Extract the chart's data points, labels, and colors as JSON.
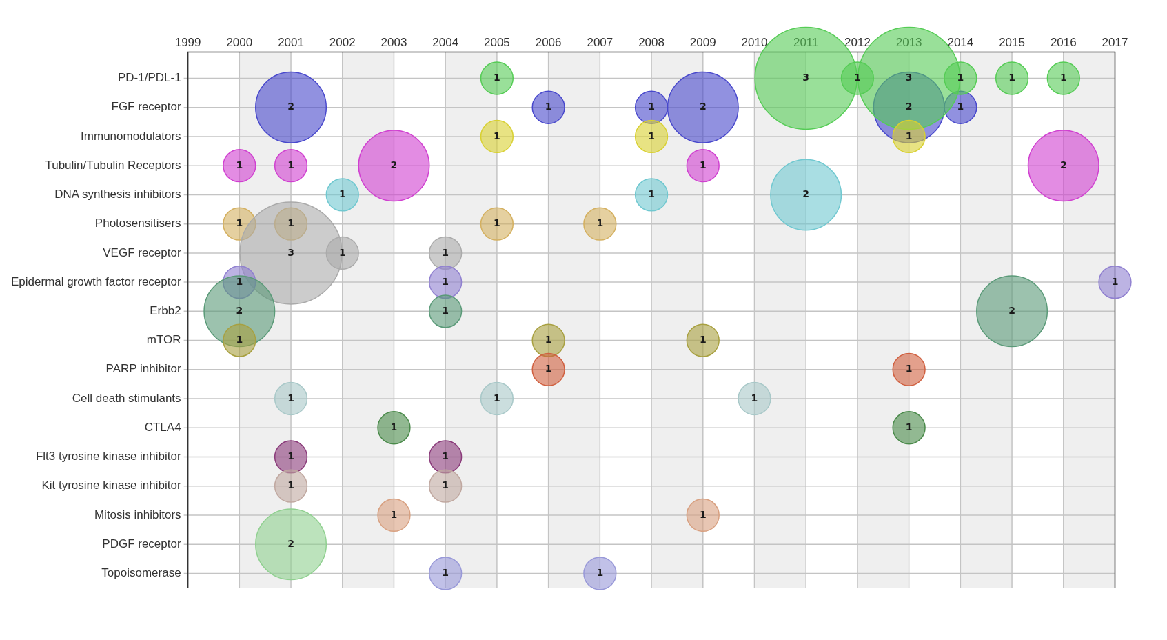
{
  "chart_data": {
    "type": "bubble",
    "orientation": "horizontal",
    "categories": [
      "PD-1/PDL-1",
      "FGF receptor",
      "Immunomodulators",
      "Tubulin/Tubulin Receptors",
      "DNA synthesis inhibitors",
      "Photosensitisers",
      "VEGF receptor",
      "Epidermal growth factor receptor",
      "Erbb2",
      "mTOR",
      "PARP inhibitor",
      "Cell death stimulants",
      "CTLA4",
      "Flt3 tyrosine kinase inhibitor",
      "Kit tyrosine kinase inhibitor",
      "Mitosis inhibitors",
      "PDGF receptor",
      "Topoisomerase"
    ],
    "xlim": [
      1999,
      2017
    ],
    "xticks": [
      1999,
      2000,
      2001,
      2002,
      2003,
      2004,
      2005,
      2006,
      2007,
      2008,
      2009,
      2010,
      2011,
      2012,
      2013,
      2014,
      2015,
      2016,
      2017
    ],
    "grid": true,
    "bands": [
      {
        "axis": "x",
        "from": 2000,
        "to": 2001,
        "color": "#efefef"
      },
      {
        "axis": "x",
        "from": 2002,
        "to": 2003,
        "color": "#efefef"
      },
      {
        "axis": "x",
        "from": 2004,
        "to": 2005,
        "color": "#efefef"
      },
      {
        "axis": "x",
        "from": 2006,
        "to": 2007,
        "color": "#efefef"
      },
      {
        "axis": "x",
        "from": 2008,
        "to": 2009,
        "color": "#efefef"
      },
      {
        "axis": "x",
        "from": 2010,
        "to": 2011,
        "color": "#efefef"
      },
      {
        "axis": "x",
        "from": 2012,
        "to": 2013,
        "color": "#efefef"
      },
      {
        "axis": "x",
        "from": 2014,
        "to": 2015,
        "color": "#efefef"
      },
      {
        "axis": "x",
        "from": 2016,
        "to": 2017,
        "color": "#efefef"
      }
    ],
    "annotations": [
      {
        "text": "1",
        "x": 2005,
        "y": "PD-1/PDL-1"
      },
      {
        "text": "3",
        "x": 2011,
        "y": "PD-1/PDL-1"
      },
      {
        "text": "1",
        "x": 2012,
        "y": "PD-1/PDL-1"
      },
      {
        "text": "3",
        "x": 2013,
        "y": "PD-1/PDL-1"
      },
      {
        "text": "1",
        "x": 2014,
        "y": "PD-1/PDL-1"
      },
      {
        "text": "1",
        "x": 2015,
        "y": "PD-1/PDL-1"
      },
      {
        "text": "1",
        "x": 2016,
        "y": "PD-1/PDL-1"
      },
      {
        "text": "2",
        "x": 2001,
        "y": "FGF receptor"
      },
      {
        "text": "1",
        "x": 2006,
        "y": "FGF receptor"
      },
      {
        "text": "1",
        "x": 2008,
        "y": "FGF receptor"
      },
      {
        "text": "2",
        "x": 2009,
        "y": "FGF receptor"
      },
      {
        "text": "2",
        "x": 2013,
        "y": "FGF receptor"
      },
      {
        "text": "1",
        "x": 2014,
        "y": "FGF receptor"
      },
      {
        "text": "1",
        "x": 2005,
        "y": "Immunomodulators"
      },
      {
        "text": "1",
        "x": 2008,
        "y": "Immunomodulators"
      },
      {
        "text": "1",
        "x": 2013,
        "y": "Immunomodulators"
      },
      {
        "text": "1",
        "x": 2000,
        "y": "Tubulin/Tubulin Receptors"
      },
      {
        "text": "1",
        "x": 2001,
        "y": "Tubulin/Tubulin Receptors"
      },
      {
        "text": "2",
        "x": 2003,
        "y": "Tubulin/Tubulin Receptors"
      },
      {
        "text": "1",
        "x": 2009,
        "y": "Tubulin/Tubulin Receptors"
      },
      {
        "text": "2",
        "x": 2016,
        "y": "Tubulin/Tubulin Receptors"
      },
      {
        "text": "1",
        "x": 2002,
        "y": "DNA synthesis inhibitors"
      },
      {
        "text": "1",
        "x": 2008,
        "y": "DNA synthesis inhibitors"
      },
      {
        "text": "2",
        "x": 2011,
        "y": "DNA synthesis inhibitors"
      },
      {
        "text": "1",
        "x": 2000,
        "y": "Photosensitisers"
      },
      {
        "text": "1",
        "x": 2001,
        "y": "Photosensitisers"
      },
      {
        "text": "1",
        "x": 2005,
        "y": "Photosensitisers"
      },
      {
        "text": "1",
        "x": 2007,
        "y": "Photosensitisers"
      },
      {
        "text": "3",
        "x": 2001,
        "y": "VEGF receptor"
      },
      {
        "text": "1",
        "x": 2002,
        "y": "VEGF receptor"
      },
      {
        "text": "1",
        "x": 2004,
        "y": "VEGF receptor"
      },
      {
        "text": "1",
        "x": 2000,
        "y": "Epidermal growth factor receptor"
      },
      {
        "text": "1",
        "x": 2004,
        "y": "Epidermal growth factor receptor"
      },
      {
        "text": "1",
        "x": 2017,
        "y": "Epidermal growth factor receptor"
      },
      {
        "text": "2",
        "x": 2000,
        "y": "Erbb2"
      },
      {
        "text": "1",
        "x": 2004,
        "y": "Erbb2"
      },
      {
        "text": "2",
        "x": 2015,
        "y": "Erbb2"
      },
      {
        "text": "1",
        "x": 2000,
        "y": "mTOR"
      },
      {
        "text": "1",
        "x": 2006,
        "y": "mTOR"
      },
      {
        "text": "1",
        "x": 2009,
        "y": "mTOR"
      },
      {
        "text": "1",
        "x": 2006,
        "y": "PARP inhibitor"
      },
      {
        "text": "1",
        "x": 2013,
        "y": "PARP inhibitor"
      },
      {
        "text": "1",
        "x": 2001,
        "y": "Cell death stimulants"
      },
      {
        "text": "1",
        "x": 2005,
        "y": "Cell death stimulants"
      },
      {
        "text": "1",
        "x": 2010,
        "y": "Cell death stimulants"
      },
      {
        "text": "1",
        "x": 2003,
        "y": "CTLA4"
      },
      {
        "text": "1",
        "x": 2013,
        "y": "CTLA4"
      },
      {
        "text": "1",
        "x": 2001,
        "y": "Flt3 tyrosine kinase inhibitor"
      },
      {
        "text": "1",
        "x": 2004,
        "y": "Flt3 tyrosine kinase inhibitor"
      },
      {
        "text": "1",
        "x": 2001,
        "y": "Kit tyrosine kinase inhibitor"
      },
      {
        "text": "1",
        "x": 2004,
        "y": "Kit tyrosine kinase inhibitor"
      },
      {
        "text": "1",
        "x": 2003,
        "y": "Mitosis inhibitors"
      },
      {
        "text": "1",
        "x": 2009,
        "y": "Mitosis inhibitors"
      },
      {
        "text": "2",
        "x": 2001,
        "y": "PDGF receptor"
      },
      {
        "text": "1",
        "x": 2004,
        "y": "Topoisomerase"
      },
      {
        "text": "1",
        "x": 2007,
        "y": "Topoisomerase"
      }
    ],
    "series": [
      {
        "colors": [
          "#55cc55",
          "#4848cc",
          "#d8d030",
          "#d040d0",
          "#70c8d0",
          "#d4b060",
          "#aaaaaa",
          "#9080d0",
          "#5a9a78",
          "#a8a040",
          "#d06040",
          "#a8c8c8",
          "#4a8a4a",
          "#8a3a7a",
          "#c0a8a0",
          "#d8a080",
          "#90d090",
          "#9898d8"
        ],
        "values": [
          2005,
          2001,
          2005,
          2000,
          2002,
          2000,
          2001,
          2000,
          2000,
          2000,
          2006,
          2001,
          2003,
          2001,
          2001,
          2003,
          2001,
          2004
        ],
        "sizes": [
          0.1,
          0.48,
          0.1,
          0.1,
          0.1,
          0.1,
          1,
          0.1,
          0.48,
          0.1,
          0.1,
          0.1,
          0.1,
          0.1,
          0.1,
          0.1,
          0.48,
          0.1
        ]
      },
      {
        "colors": [
          "#55cc55",
          "#4848cc",
          "#d8d030",
          "#d040d0",
          "#70c8d0",
          "#d4b060",
          "#aaaaaa",
          "#9080d0",
          "#5a9a78",
          "#a8a040",
          "#d06040",
          "#a8c8c8",
          "#4a8a4a",
          "#8a3a7a",
          "#c0a8a0",
          "#d8a080",
          null,
          "#9898d8"
        ],
        "values": [
          2011,
          2006,
          2008,
          2001,
          2008,
          2001,
          2002,
          2004,
          2004,
          2006,
          2013,
          2005,
          2013,
          2004,
          2004,
          2009,
          null,
          2007
        ],
        "sizes": [
          1,
          0.1,
          0.1,
          0.1,
          0.1,
          0.1,
          0.1,
          0.1,
          0.1,
          0.1,
          0.1,
          0.1,
          0.1,
          0.1,
          0.1,
          0.1,
          null,
          0.1
        ]
      },
      {
        "colors": [
          "#55cc55",
          "#4848cc",
          "#d8d030",
          "#d040d0",
          "#70c8d0",
          "#d4b060",
          "#aaaaaa",
          "#9080d0",
          "#5a9a78",
          "#a8a040",
          null,
          "#a8c8c8",
          null,
          null,
          null,
          null,
          null,
          null
        ],
        "values": [
          2012,
          2008,
          2013,
          2003,
          2011,
          2005,
          2004,
          2017,
          2015,
          2009,
          null,
          2010,
          null,
          null,
          null,
          null,
          null,
          null
        ],
        "sizes": [
          0.1,
          0.1,
          0.1,
          0.48,
          0.48,
          0.1,
          0.1,
          0.1,
          0.48,
          0.1,
          null,
          0.1,
          null,
          null,
          null,
          null,
          null,
          null
        ]
      },
      {
        "colors": [
          "#55cc55",
          "#4848cc",
          null,
          "#d040d0",
          null,
          "#d4b060",
          null,
          null,
          null,
          null,
          null,
          null,
          null,
          null,
          null,
          null,
          null,
          null
        ],
        "values": [
          2013,
          2009,
          null,
          2009,
          null,
          2007,
          null,
          null,
          null,
          null,
          null,
          null,
          null,
          null,
          null,
          null,
          null,
          null
        ],
        "sizes": [
          1,
          0.48,
          null,
          0.1,
          null,
          0.1,
          null,
          null,
          null,
          null,
          null,
          null,
          null,
          null,
          null,
          null,
          null,
          null
        ]
      },
      {
        "colors": [
          "#55cc55",
          "#4848cc",
          null,
          "#d040d0",
          null,
          null,
          null,
          null,
          null,
          null,
          null,
          null,
          null,
          null,
          null,
          null,
          null,
          null
        ],
        "values": [
          2014,
          2013,
          null,
          2016,
          null,
          null,
          null,
          null,
          null,
          null,
          null,
          null,
          null,
          null,
          null,
          null,
          null,
          null
        ],
        "sizes": [
          0.1,
          0.48,
          null,
          0.48,
          null,
          null,
          null,
          null,
          null,
          null,
          null,
          null,
          null,
          null,
          null,
          null,
          null,
          null
        ]
      },
      {
        "colors": [
          "#55cc55",
          "#4848cc",
          null,
          null,
          null,
          null,
          null,
          null,
          null,
          null,
          null,
          null,
          null,
          null,
          null,
          null,
          null,
          null
        ],
        "values": [
          2015,
          2014,
          null,
          null,
          null,
          null,
          null,
          null,
          null,
          null,
          null,
          null,
          null,
          null,
          null,
          null,
          null,
          null
        ],
        "sizes": [
          0.1,
          0.1,
          null,
          null,
          null,
          null,
          null,
          null,
          null,
          null,
          null,
          null,
          null,
          null,
          null,
          null,
          null,
          null
        ]
      },
      {
        "colors": [
          "#55cc55",
          null,
          null,
          null,
          null,
          null,
          null,
          null,
          null,
          null,
          null,
          null,
          null,
          null,
          null,
          null,
          null,
          null
        ],
        "values": [
          2016,
          null,
          null,
          null,
          null,
          null,
          null,
          null,
          null,
          null,
          null,
          null,
          null,
          null,
          null,
          null,
          null,
          null
        ],
        "sizes": [
          0.1,
          null,
          null,
          null,
          null,
          null,
          null,
          null,
          null,
          null,
          null,
          null,
          null,
          null,
          null,
          null,
          null,
          null
        ]
      }
    ]
  }
}
